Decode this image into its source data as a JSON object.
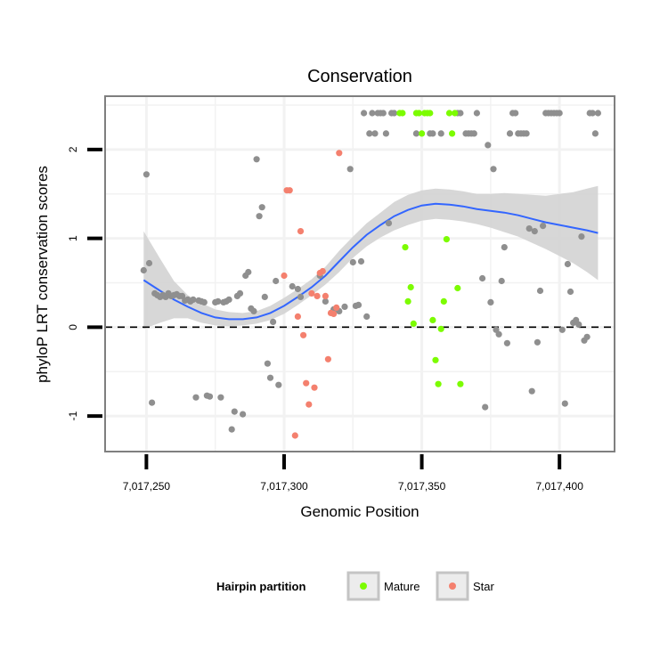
{
  "chart_data": {
    "type": "scatter",
    "title": "Conservation",
    "xlabel": "Genomic Position",
    "ylabel": "phyloP LRT conservation scores",
    "xlim": [
      7017235,
      7017420
    ],
    "ylim": [
      -1.4,
      2.6
    ],
    "x_ticks": [
      7017250,
      7017300,
      7017350,
      7017400
    ],
    "x_tick_labels": [
      "7,017,250",
      "7,017,300",
      "7,017,350",
      "7,017,400"
    ],
    "y_ticks": [
      -1,
      0,
      1,
      2
    ],
    "y_tick_labels": [
      "-1",
      "0",
      "1",
      "2"
    ],
    "reference_line_y": 0,
    "legend": {
      "title": "Hairpin partition",
      "entries": [
        "Mature",
        "Star"
      ],
      "position": "bottom"
    },
    "colors": {
      "Mature": "#7CFC00",
      "Star": "#F4806E",
      "Other": "#8f8f8f",
      "smooth": "#3366FF",
      "band": "#d3d3d3",
      "grid": "#f2f2f2",
      "frame": "#7f7f7f"
    },
    "series": [
      {
        "name": "Other",
        "points": [
          [
            7017250,
            1.72
          ],
          [
            7017249,
            0.64
          ],
          [
            7017251,
            0.72
          ],
          [
            7017252,
            -0.85
          ],
          [
            7017253,
            0.38
          ],
          [
            7017254,
            0.36
          ],
          [
            7017255,
            0.34
          ],
          [
            7017256,
            0.36
          ],
          [
            7017257,
            0.34
          ],
          [
            7017258,
            0.38
          ],
          [
            7017259,
            0.35
          ],
          [
            7017260,
            0.36
          ],
          [
            7017261,
            0.37
          ],
          [
            7017262,
            0.35
          ],
          [
            7017263,
            0.35
          ],
          [
            7017264,
            0.3
          ],
          [
            7017265,
            0.31
          ],
          [
            7017266,
            0.29
          ],
          [
            7017267,
            0.31
          ],
          [
            7017268,
            -0.79
          ],
          [
            7017269,
            0.3
          ],
          [
            7017270,
            0.29
          ],
          [
            7017271,
            0.28
          ],
          [
            7017272,
            -0.77
          ],
          [
            7017273,
            -0.78
          ],
          [
            7017275,
            0.28
          ],
          [
            7017276,
            0.29
          ],
          [
            7017277,
            -0.79
          ],
          [
            7017278,
            0.28
          ],
          [
            7017279,
            0.29
          ],
          [
            7017280,
            0.31
          ],
          [
            7017281,
            -1.15
          ],
          [
            7017282,
            -0.95
          ],
          [
            7017283,
            0.35
          ],
          [
            7017284,
            0.38
          ],
          [
            7017285,
            -0.98
          ],
          [
            7017286,
            0.58
          ],
          [
            7017287,
            0.62
          ],
          [
            7017288,
            0.21
          ],
          [
            7017289,
            0.18
          ],
          [
            7017290,
            1.89
          ],
          [
            7017291,
            1.25
          ],
          [
            7017292,
            1.35
          ],
          [
            7017293,
            0.34
          ],
          [
            7017294,
            -0.41
          ],
          [
            7017295,
            -0.57
          ],
          [
            7017296,
            0.06
          ],
          [
            7017297,
            0.52
          ],
          [
            7017298,
            -0.65
          ],
          [
            7017303,
            0.46
          ],
          [
            7017305,
            0.43
          ],
          [
            7017306,
            0.34
          ],
          [
            7017313,
            0.58
          ],
          [
            7017315,
            0.29
          ],
          [
            7017318,
            0.2
          ],
          [
            7017319,
            0.21
          ],
          [
            7017320,
            0.18
          ],
          [
            7017322,
            0.23
          ],
          [
            7017324,
            1.78
          ],
          [
            7017325,
            0.73
          ],
          [
            7017326,
            0.24
          ],
          [
            7017327,
            0.25
          ],
          [
            7017328,
            0.74
          ],
          [
            7017329,
            2.41
          ],
          [
            7017330,
            0.12
          ],
          [
            7017331,
            2.18
          ],
          [
            7017332,
            2.41
          ],
          [
            7017333,
            2.18
          ],
          [
            7017334,
            2.41
          ],
          [
            7017335,
            2.41
          ],
          [
            7017336,
            2.41
          ],
          [
            7017337,
            2.18
          ],
          [
            7017338,
            1.17
          ],
          [
            7017339,
            2.41
          ],
          [
            7017340,
            2.41
          ],
          [
            7017348,
            2.18
          ],
          [
            7017353,
            2.18
          ],
          [
            7017354,
            2.18
          ],
          [
            7017357,
            2.18
          ],
          [
            7017363,
            2.41
          ],
          [
            7017364,
            2.41
          ],
          [
            7017366,
            2.18
          ],
          [
            7017367,
            2.18
          ],
          [
            7017368,
            2.18
          ],
          [
            7017369,
            2.18
          ],
          [
            7017370,
            2.41
          ],
          [
            7017372,
            0.55
          ],
          [
            7017373,
            -0.9
          ],
          [
            7017374,
            2.05
          ],
          [
            7017375,
            0.28
          ],
          [
            7017376,
            1.78
          ],
          [
            7017377,
            -0.03
          ],
          [
            7017378,
            -0.08
          ],
          [
            7017379,
            0.52
          ],
          [
            7017380,
            0.9
          ],
          [
            7017381,
            -0.18
          ],
          [
            7017382,
            2.18
          ],
          [
            7017383,
            2.41
          ],
          [
            7017384,
            2.41
          ],
          [
            7017385,
            2.18
          ],
          [
            7017386,
            2.18
          ],
          [
            7017387,
            2.18
          ],
          [
            7017388,
            2.18
          ],
          [
            7017389,
            1.11
          ],
          [
            7017390,
            -0.72
          ],
          [
            7017391,
            1.08
          ],
          [
            7017392,
            -0.17
          ],
          [
            7017393,
            0.41
          ],
          [
            7017394,
            1.14
          ],
          [
            7017395,
            2.41
          ],
          [
            7017396,
            2.41
          ],
          [
            7017397,
            2.41
          ],
          [
            7017398,
            2.41
          ],
          [
            7017399,
            2.41
          ],
          [
            7017400,
            2.41
          ],
          [
            7017401,
            -0.03
          ],
          [
            7017402,
            -0.86
          ],
          [
            7017403,
            0.71
          ],
          [
            7017404,
            0.4
          ],
          [
            7017405,
            0.05
          ],
          [
            7017406,
            0.08
          ],
          [
            7017407,
            0.03
          ],
          [
            7017408,
            1.02
          ],
          [
            7017409,
            -0.15
          ],
          [
            7017410,
            -0.11
          ],
          [
            7017411,
            2.41
          ],
          [
            7017412,
            2.41
          ],
          [
            7017413,
            2.18
          ],
          [
            7017414,
            2.41
          ]
        ]
      },
      {
        "name": "Mature",
        "points": [
          [
            7017342,
            2.41
          ],
          [
            7017343,
            2.41
          ],
          [
            7017344,
            0.9
          ],
          [
            7017345,
            0.29
          ],
          [
            7017346,
            0.45
          ],
          [
            7017347,
            0.04
          ],
          [
            7017348,
            2.41
          ],
          [
            7017349,
            2.41
          ],
          [
            7017350,
            2.18
          ],
          [
            7017351,
            2.41
          ],
          [
            7017352,
            2.41
          ],
          [
            7017353,
            2.41
          ],
          [
            7017354,
            0.08
          ],
          [
            7017355,
            -0.37
          ],
          [
            7017356,
            -0.64
          ],
          [
            7017357,
            -0.02
          ],
          [
            7017358,
            0.29
          ],
          [
            7017359,
            0.99
          ],
          [
            7017360,
            2.41
          ],
          [
            7017361,
            2.18
          ],
          [
            7017362,
            2.41
          ],
          [
            7017363,
            0.44
          ],
          [
            7017364,
            -0.64
          ]
        ]
      },
      {
        "name": "Star",
        "points": [
          [
            7017300,
            0.58
          ],
          [
            7017301,
            1.54
          ],
          [
            7017302,
            1.54
          ],
          [
            7017304,
            -1.22
          ],
          [
            7017305,
            0.12
          ],
          [
            7017306,
            1.08
          ],
          [
            7017307,
            -0.09
          ],
          [
            7017308,
            -0.63
          ],
          [
            7017309,
            -0.87
          ],
          [
            7017310,
            0.38
          ],
          [
            7017311,
            -0.68
          ],
          [
            7017312,
            0.35
          ],
          [
            7017313,
            0.61
          ],
          [
            7017314,
            0.63
          ],
          [
            7017315,
            0.35
          ],
          [
            7017316,
            -0.36
          ],
          [
            7017317,
            0.16
          ],
          [
            7017318,
            0.15
          ],
          [
            7017319,
            0.22
          ],
          [
            7017320,
            1.96
          ]
        ]
      }
    ],
    "smooth": {
      "method": "loess",
      "x": [
        7017249,
        7017255,
        7017260,
        7017265,
        7017270,
        7017275,
        7017280,
        7017285,
        7017290,
        7017295,
        7017300,
        7017305,
        7017310,
        7017315,
        7017320,
        7017325,
        7017330,
        7017335,
        7017340,
        7017345,
        7017350,
        7017355,
        7017360,
        7017365,
        7017370,
        7017375,
        7017380,
        7017385,
        7017390,
        7017395,
        7017400,
        7017405,
        7017410,
        7017414
      ],
      "y": [
        0.53,
        0.41,
        0.31,
        0.23,
        0.16,
        0.11,
        0.09,
        0.09,
        0.11,
        0.16,
        0.24,
        0.34,
        0.45,
        0.58,
        0.74,
        0.9,
        1.04,
        1.15,
        1.25,
        1.32,
        1.37,
        1.39,
        1.38,
        1.36,
        1.33,
        1.31,
        1.29,
        1.26,
        1.22,
        1.18,
        1.15,
        1.12,
        1.09,
        1.06
      ],
      "lower": [
        -0.02,
        0.05,
        0.1,
        0.1,
        0.05,
        0.02,
        0.01,
        0.02,
        0.04,
        0.08,
        0.15,
        0.25,
        0.36,
        0.48,
        0.62,
        0.78,
        0.91,
        1.01,
        1.09,
        1.15,
        1.2,
        1.22,
        1.21,
        1.19,
        1.16,
        1.12,
        1.07,
        1.02,
        0.95,
        0.88,
        0.8,
        0.72,
        0.62,
        0.53
      ],
      "upper": [
        1.08,
        0.77,
        0.52,
        0.36,
        0.27,
        0.2,
        0.17,
        0.16,
        0.18,
        0.24,
        0.33,
        0.43,
        0.54,
        0.68,
        0.86,
        1.02,
        1.17,
        1.29,
        1.41,
        1.49,
        1.54,
        1.56,
        1.55,
        1.53,
        1.5,
        1.5,
        1.51,
        1.5,
        1.49,
        1.48,
        1.5,
        1.52,
        1.56,
        1.59
      ]
    }
  }
}
